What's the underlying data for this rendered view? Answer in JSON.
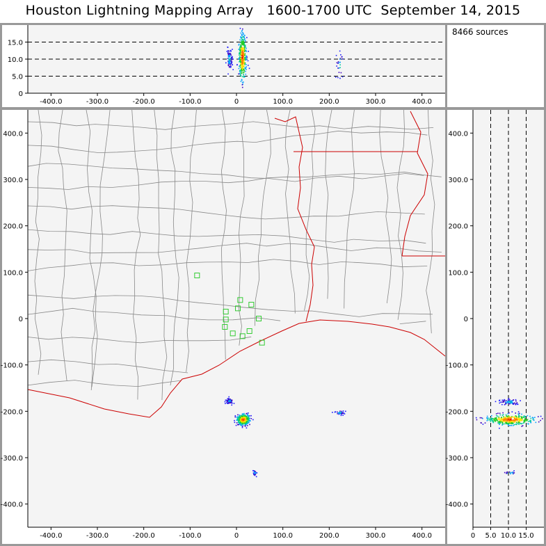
{
  "title": "Houston Lightning Mapping Array   1600-1700 UTC  September 14, 2015",
  "source_count": "8466 sources",
  "colors": {
    "frame": "#999999",
    "panel_bg": "#f4f4f4",
    "county": "#888888",
    "state": "#cc0000",
    "station": "#33cc33"
  },
  "chart_data": [
    {
      "type": "scatter",
      "name": "plan-view",
      "xlim": [
        -450,
        450
      ],
      "ylim": [
        -450,
        450
      ],
      "xticks": [
        "-400.0",
        "-300.0",
        "-200.0",
        "-100.0",
        "0",
        "100.0",
        "200.0",
        "300.0",
        "400.0"
      ],
      "xtick_values": [
        -400,
        -300,
        -200,
        -100,
        0,
        100,
        200,
        300,
        400
      ],
      "yticks": [
        "400.0",
        "300.0",
        "200.0",
        "100.0",
        "0",
        "-100.0",
        "-200.0",
        "-300.0",
        "-400.0"
      ],
      "ytick_values": [
        400,
        300,
        200,
        100,
        0,
        -100,
        -200,
        -300,
        -400
      ],
      "stations": [
        {
          "x": -85,
          "y": 93
        },
        {
          "x": -23,
          "y": 15
        },
        {
          "x": 8,
          "y": 40
        },
        {
          "x": 32,
          "y": 30
        },
        {
          "x": 3,
          "y": 22
        },
        {
          "x": 48,
          "y": 0
        },
        {
          "x": -23,
          "y": -2
        },
        {
          "x": -25,
          "y": -18
        },
        {
          "x": -8,
          "y": -32
        },
        {
          "x": 13,
          "y": -38
        },
        {
          "x": 28,
          "y": -27
        },
        {
          "x": 55,
          "y": -52
        }
      ],
      "source_clusters": [
        {
          "x": 15,
          "y": -218,
          "sx": 7,
          "sy": 6,
          "n": 320,
          "peak": true
        },
        {
          "x": -15,
          "y": -178,
          "sx": 4,
          "sy": 3,
          "n": 70
        },
        {
          "x": 223,
          "y": -203,
          "sx": 5,
          "sy": 2,
          "n": 40
        },
        {
          "x": 40,
          "y": -333,
          "sx": 2,
          "sy": 3,
          "n": 22
        }
      ]
    },
    {
      "type": "scatter",
      "name": "x-altitude",
      "xlim": [
        -450,
        450
      ],
      "ylim": [
        0,
        20
      ],
      "xticks": [
        "-400.0",
        "-300.0",
        "-200.0",
        "-100.0",
        "0",
        "100.0",
        "200.0",
        "300.0",
        "400.0"
      ],
      "xtick_values": [
        -400,
        -300,
        -200,
        -100,
        0,
        100,
        200,
        300,
        400
      ],
      "yticks": [
        "15.0",
        "10.0",
        "5.0",
        "0"
      ],
      "ytick_values": [
        15,
        10,
        5,
        0
      ],
      "guide_lines": [
        5,
        10,
        15
      ],
      "source_clusters": [
        {
          "x": 13,
          "y": 10.5,
          "sx": 4,
          "sy": 3.5,
          "n": 360,
          "peak": true
        },
        {
          "x": -15,
          "y": 10,
          "sx": 3,
          "sy": 1.5,
          "n": 90
        },
        {
          "x": 223,
          "y": 8,
          "sx": 4,
          "sy": 2,
          "n": 25
        }
      ]
    },
    {
      "type": "scatter",
      "name": "altitude-y",
      "xlim": [
        0,
        20
      ],
      "ylim": [
        -450,
        450
      ],
      "xticks": [
        "0",
        "5.0",
        "10.0",
        "15.0"
      ],
      "xtick_values": [
        0,
        5,
        10,
        15
      ],
      "yticks": [
        "400.0",
        "300.0",
        "200.0",
        "100.0",
        "0",
        "-100.0",
        "-200.0",
        "-300.0",
        "-400.0"
      ],
      "ytick_values": [
        400,
        300,
        200,
        100,
        0,
        -100,
        -200,
        -300,
        -400
      ],
      "guide_lines": [
        5,
        10,
        15
      ],
      "source_clusters": [
        {
          "x": 10.5,
          "y": -218,
          "sx": 3.5,
          "sy": 6,
          "n": 360,
          "peak": true
        },
        {
          "x": 10.5,
          "y": -180,
          "sx": 1.5,
          "sy": 3,
          "n": 70
        },
        {
          "x": 10.5,
          "y": -333,
          "sx": 1,
          "sy": 2,
          "n": 15
        }
      ]
    }
  ]
}
